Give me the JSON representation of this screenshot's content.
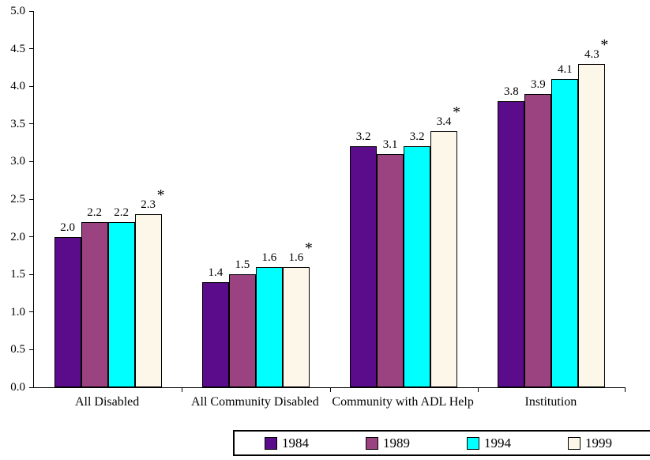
{
  "chart_data": {
    "type": "bar",
    "title": "",
    "categories": [
      "All Disabled",
      "All Community Disabled",
      "Community with ADL Help",
      "Institution"
    ],
    "series": [
      {
        "name": "1984",
        "color": "#5B0C8B",
        "values": [
          2.0,
          1.4,
          3.2,
          3.8
        ]
      },
      {
        "name": "1989",
        "color": "#9A4380",
        "values": [
          2.2,
          1.5,
          3.1,
          3.9
        ]
      },
      {
        "name": "1994",
        "color": "#00FFFF",
        "values": [
          2.2,
          1.6,
          3.2,
          4.1
        ]
      },
      {
        "name": "1999",
        "color": "#FCF7E8",
        "values": [
          2.3,
          1.6,
          3.4,
          4.3
        ],
        "marker": "*"
      }
    ],
    "value_labels": true,
    "decimals": 1,
    "ylim": [
      0,
      5
    ],
    "ytick_step": 0.5,
    "ytick_labels": [
      "0.0",
      "0.5",
      "1.0",
      "1.5",
      "2.0",
      "2.5",
      "3.0",
      "3.5",
      "4.0",
      "4.5",
      "5.0"
    ],
    "grid": false,
    "legend_position": "bottom",
    "significance_marker": "*"
  }
}
